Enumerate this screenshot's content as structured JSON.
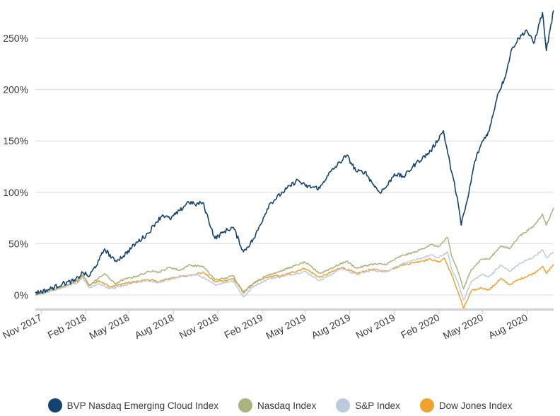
{
  "chart_data": {
    "type": "line",
    "title": "",
    "xlabel": "",
    "ylabel": "",
    "ylim": [
      -13,
      280
    ],
    "yticks": [
      {
        "value": 0,
        "label": "0%"
      },
      {
        "value": 50,
        "label": "50%"
      },
      {
        "value": 100,
        "label": "100%"
      },
      {
        "value": 150,
        "label": "150%"
      },
      {
        "value": 200,
        "label": "200%"
      },
      {
        "value": 250,
        "label": "250%"
      }
    ],
    "xrange": [
      "2017-10-20",
      "2020-09-25"
    ],
    "xticks": [
      {
        "date": "2017-11-01",
        "label": "Nov 2017"
      },
      {
        "date": "2018-02-01",
        "label": "Feb 2018"
      },
      {
        "date": "2018-05-01",
        "label": "May 2018"
      },
      {
        "date": "2018-08-01",
        "label": "Aug 2018"
      },
      {
        "date": "2018-11-01",
        "label": "Nov 2018"
      },
      {
        "date": "2019-02-01",
        "label": "Feb 2019"
      },
      {
        "date": "2019-05-01",
        "label": "May 2019"
      },
      {
        "date": "2019-08-01",
        "label": "Aug 2019"
      },
      {
        "date": "2019-11-01",
        "label": "Nov 2019"
      },
      {
        "date": "2020-02-01",
        "label": "Feb 2020"
      },
      {
        "date": "2020-05-01",
        "label": "May 2020"
      },
      {
        "date": "2020-08-01",
        "label": "Aug 2020"
      }
    ],
    "grid": true,
    "legend_position": "bottom",
    "series": [
      {
        "name": "Dow Jones Index",
        "color": "#f0a22e",
        "points": [
          [
            "2017-10-20",
            0
          ],
          [
            "2017-11-15",
            4
          ],
          [
            "2017-12-15",
            8
          ],
          [
            "2018-01-15",
            13
          ],
          [
            "2018-01-26",
            20
          ],
          [
            "2018-02-08",
            10
          ],
          [
            "2018-03-01",
            14
          ],
          [
            "2018-03-23",
            8
          ],
          [
            "2018-04-20",
            11
          ],
          [
            "2018-05-15",
            13
          ],
          [
            "2018-06-10",
            15
          ],
          [
            "2018-07-01",
            13
          ],
          [
            "2018-07-31",
            17
          ],
          [
            "2018-09-01",
            19
          ],
          [
            "2018-10-03",
            22
          ],
          [
            "2018-10-26",
            13
          ],
          [
            "2018-11-15",
            14
          ],
          [
            "2018-12-03",
            16
          ],
          [
            "2018-12-24",
            3
          ],
          [
            "2019-01-15",
            12
          ],
          [
            "2019-02-15",
            18
          ],
          [
            "2019-03-15",
            19
          ],
          [
            "2019-04-30",
            26
          ],
          [
            "2019-05-31",
            17
          ],
          [
            "2019-07-15",
            27
          ],
          [
            "2019-08-15",
            21
          ],
          [
            "2019-09-15",
            25
          ],
          [
            "2019-10-15",
            23
          ],
          [
            "2019-11-15",
            29
          ],
          [
            "2019-12-15",
            32
          ],
          [
            "2020-01-15",
            35
          ],
          [
            "2020-01-31",
            32
          ],
          [
            "2020-02-12",
            36
          ],
          [
            "2020-02-27",
            20
          ],
          [
            "2020-03-10",
            5
          ],
          [
            "2020-03-23",
            -13
          ],
          [
            "2020-04-08",
            4
          ],
          [
            "2020-04-29",
            7
          ],
          [
            "2020-05-15",
            5
          ],
          [
            "2020-06-08",
            16
          ],
          [
            "2020-06-26",
            10
          ],
          [
            "2020-07-15",
            15
          ],
          [
            "2020-08-15",
            21
          ],
          [
            "2020-09-02",
            28
          ],
          [
            "2020-09-10",
            21
          ],
          [
            "2020-09-25",
            30
          ]
        ]
      },
      {
        "name": "S&P Index",
        "color": "#bccbdb",
        "points": [
          [
            "2017-10-20",
            0
          ],
          [
            "2017-11-15",
            3
          ],
          [
            "2017-12-15",
            7
          ],
          [
            "2018-01-15",
            12
          ],
          [
            "2018-01-26",
            17
          ],
          [
            "2018-02-08",
            7
          ],
          [
            "2018-03-01",
            11
          ],
          [
            "2018-03-23",
            6
          ],
          [
            "2018-04-20",
            9
          ],
          [
            "2018-05-15",
            12
          ],
          [
            "2018-06-10",
            14
          ],
          [
            "2018-07-01",
            12
          ],
          [
            "2018-07-31",
            16
          ],
          [
            "2018-09-01",
            19
          ],
          [
            "2018-09-20",
            20
          ],
          [
            "2018-10-26",
            10
          ],
          [
            "2018-11-15",
            12
          ],
          [
            "2018-12-03",
            14
          ],
          [
            "2018-12-24",
            -2
          ],
          [
            "2019-01-15",
            9
          ],
          [
            "2019-02-15",
            16
          ],
          [
            "2019-03-15",
            18
          ],
          [
            "2019-04-30",
            23
          ],
          [
            "2019-05-31",
            14
          ],
          [
            "2019-07-15",
            26
          ],
          [
            "2019-08-15",
            20
          ],
          [
            "2019-09-15",
            24
          ],
          [
            "2019-10-15",
            23
          ],
          [
            "2019-11-15",
            30
          ],
          [
            "2019-12-15",
            34
          ],
          [
            "2020-01-15",
            39
          ],
          [
            "2020-01-31",
            36
          ],
          [
            "2020-02-19",
            42
          ],
          [
            "2020-02-27",
            25
          ],
          [
            "2020-03-10",
            14
          ],
          [
            "2020-03-23",
            -5
          ],
          [
            "2020-04-08",
            13
          ],
          [
            "2020-04-29",
            20
          ],
          [
            "2020-05-15",
            18
          ],
          [
            "2020-06-08",
            29
          ],
          [
            "2020-06-26",
            23
          ],
          [
            "2020-07-15",
            30
          ],
          [
            "2020-08-15",
            37
          ],
          [
            "2020-09-02",
            44
          ],
          [
            "2020-09-10",
            36
          ],
          [
            "2020-09-25",
            42
          ]
        ]
      },
      {
        "name": "Nasdaq Index",
        "color": "#a9b37c",
        "points": [
          [
            "2017-10-20",
            0
          ],
          [
            "2017-11-15",
            4
          ],
          [
            "2017-12-15",
            8
          ],
          [
            "2018-01-15",
            14
          ],
          [
            "2018-01-26",
            19
          ],
          [
            "2018-02-08",
            9
          ],
          [
            "2018-03-12",
            21
          ],
          [
            "2018-04-02",
            11
          ],
          [
            "2018-04-20",
            15
          ],
          [
            "2018-05-15",
            18
          ],
          [
            "2018-06-20",
            24
          ],
          [
            "2018-07-01",
            22
          ],
          [
            "2018-07-25",
            27
          ],
          [
            "2018-08-15",
            24
          ],
          [
            "2018-09-01",
            29
          ],
          [
            "2018-10-01",
            28
          ],
          [
            "2018-10-26",
            15
          ],
          [
            "2018-11-15",
            16
          ],
          [
            "2018-12-03",
            19
          ],
          [
            "2018-12-24",
            2
          ],
          [
            "2019-01-15",
            12
          ],
          [
            "2019-02-15",
            20
          ],
          [
            "2019-03-15",
            24
          ],
          [
            "2019-04-30",
            32
          ],
          [
            "2019-05-31",
            21
          ],
          [
            "2019-07-25",
            33
          ],
          [
            "2019-08-15",
            26
          ],
          [
            "2019-09-15",
            30
          ],
          [
            "2019-10-15",
            30
          ],
          [
            "2019-11-15",
            38
          ],
          [
            "2019-12-15",
            42
          ],
          [
            "2020-01-15",
            49
          ],
          [
            "2020-01-31",
            47
          ],
          [
            "2020-02-19",
            56
          ],
          [
            "2020-02-27",
            38
          ],
          [
            "2020-03-10",
            25
          ],
          [
            "2020-03-23",
            6
          ],
          [
            "2020-04-08",
            25
          ],
          [
            "2020-04-29",
            35
          ],
          [
            "2020-05-15",
            35
          ],
          [
            "2020-06-08",
            48
          ],
          [
            "2020-06-26",
            45
          ],
          [
            "2020-07-15",
            57
          ],
          [
            "2020-08-15",
            67
          ],
          [
            "2020-09-02",
            79
          ],
          [
            "2020-09-10",
            68
          ],
          [
            "2020-09-25",
            85
          ]
        ]
      },
      {
        "name": "BVP Nasdaq Emerging Cloud Index",
        "color": "#13436e",
        "points": [
          [
            "2017-10-20",
            2
          ],
          [
            "2017-11-15",
            5
          ],
          [
            "2017-12-15",
            11
          ],
          [
            "2018-01-10",
            14
          ],
          [
            "2018-01-26",
            22
          ],
          [
            "2018-02-08",
            18
          ],
          [
            "2018-03-01",
            34
          ],
          [
            "2018-03-12",
            45
          ],
          [
            "2018-04-02",
            33
          ],
          [
            "2018-04-20",
            38
          ],
          [
            "2018-05-15",
            50
          ],
          [
            "2018-06-10",
            60
          ],
          [
            "2018-06-25",
            70
          ],
          [
            "2018-07-10",
            78
          ],
          [
            "2018-07-25",
            74
          ],
          [
            "2018-08-15",
            82
          ],
          [
            "2018-09-01",
            91
          ],
          [
            "2018-09-15",
            88
          ],
          [
            "2018-10-01",
            90
          ],
          [
            "2018-10-26",
            55
          ],
          [
            "2018-11-15",
            62
          ],
          [
            "2018-12-03",
            66
          ],
          [
            "2018-12-24",
            42
          ],
          [
            "2019-01-15",
            55
          ],
          [
            "2019-02-15",
            88
          ],
          [
            "2019-03-15",
            100
          ],
          [
            "2019-04-15",
            112
          ],
          [
            "2019-05-01",
            106
          ],
          [
            "2019-05-31",
            104
          ],
          [
            "2019-06-15",
            116
          ],
          [
            "2019-07-25",
            136
          ],
          [
            "2019-08-15",
            120
          ],
          [
            "2019-09-01",
            120
          ],
          [
            "2019-09-15",
            110
          ],
          [
            "2019-10-01",
            100
          ],
          [
            "2019-10-15",
            105
          ],
          [
            "2019-11-01",
            118
          ],
          [
            "2019-11-20",
            115
          ],
          [
            "2019-12-15",
            128
          ],
          [
            "2020-01-15",
            140
          ],
          [
            "2020-02-10",
            160
          ],
          [
            "2020-02-27",
            120
          ],
          [
            "2020-03-10",
            95
          ],
          [
            "2020-03-18",
            68
          ],
          [
            "2020-04-01",
            95
          ],
          [
            "2020-04-15",
            130
          ],
          [
            "2020-05-01",
            150
          ],
          [
            "2020-05-15",
            160
          ],
          [
            "2020-06-01",
            195
          ],
          [
            "2020-06-15",
            210
          ],
          [
            "2020-07-01",
            240
          ],
          [
            "2020-07-15",
            250
          ],
          [
            "2020-07-31",
            258
          ],
          [
            "2020-08-15",
            245
          ],
          [
            "2020-09-02",
            275
          ],
          [
            "2020-09-10",
            238
          ],
          [
            "2020-09-25",
            277
          ]
        ]
      }
    ],
    "legend": [
      {
        "name": "BVP Nasdaq Emerging Cloud Index",
        "color": "#13436e"
      },
      {
        "name": "Nasdaq Index",
        "color": "#a9b37c"
      },
      {
        "name": "S&P Index",
        "color": "#bccbdb"
      },
      {
        "name": "Dow Jones Index",
        "color": "#f0a22e"
      }
    ]
  }
}
